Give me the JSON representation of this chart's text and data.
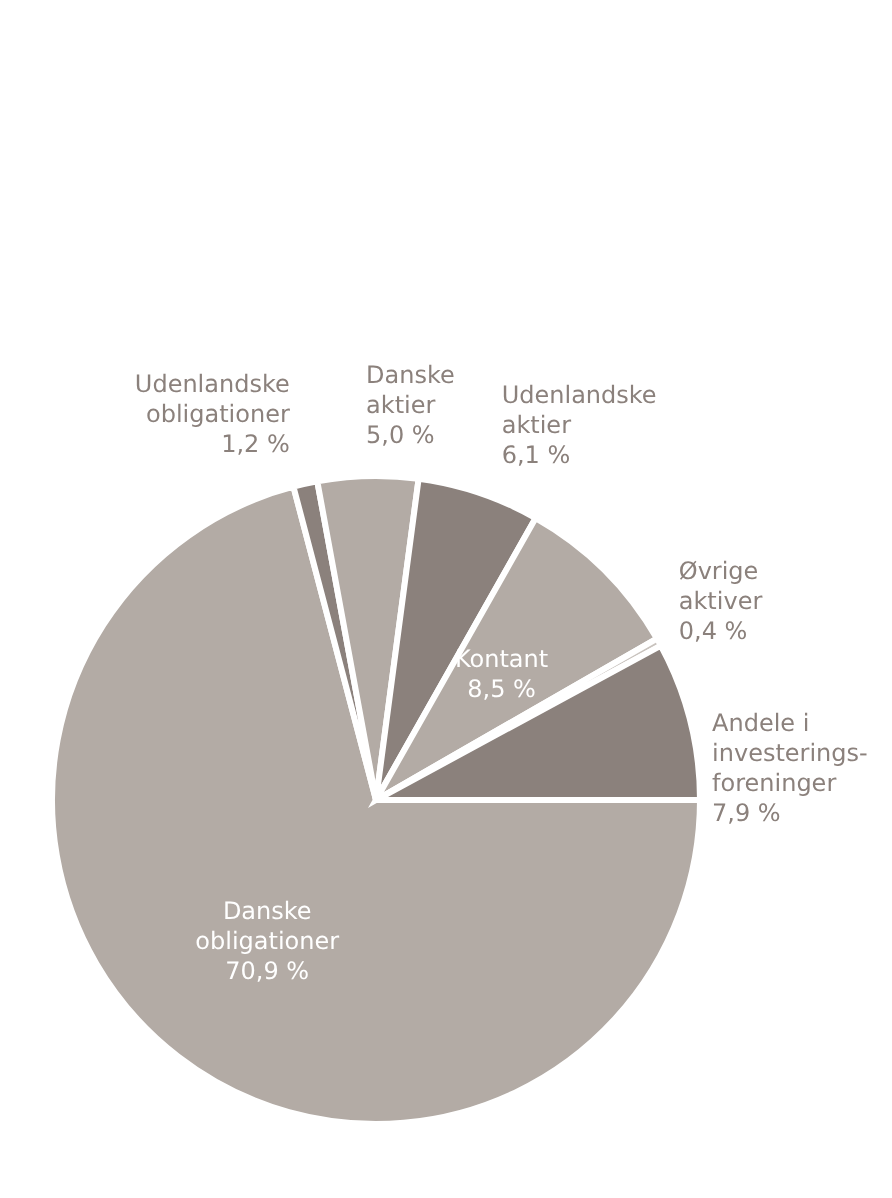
{
  "chart_data": {
    "type": "pie",
    "categories": [
      "Danske obligationer",
      "Udenlandske obligationer",
      "Danske aktier",
      "Udenlandske aktier",
      "Kontant",
      "Øvrige aktiver",
      "Andele i investerings-foreninger"
    ],
    "values": [
      70.9,
      1.2,
      5.0,
      6.1,
      8.5,
      0.4,
      7.9
    ],
    "value_labels": [
      "70,9 %",
      "1,2 %",
      "5,0 %",
      "6,1 %",
      "8,5 %",
      "0,4 %",
      "7,9 %"
    ],
    "colors": [
      "#b3aba5",
      "#8b817c",
      "#b3aba5",
      "#8b817c",
      "#b3aba5",
      "#c9c3be",
      "#8b817c"
    ]
  }
}
